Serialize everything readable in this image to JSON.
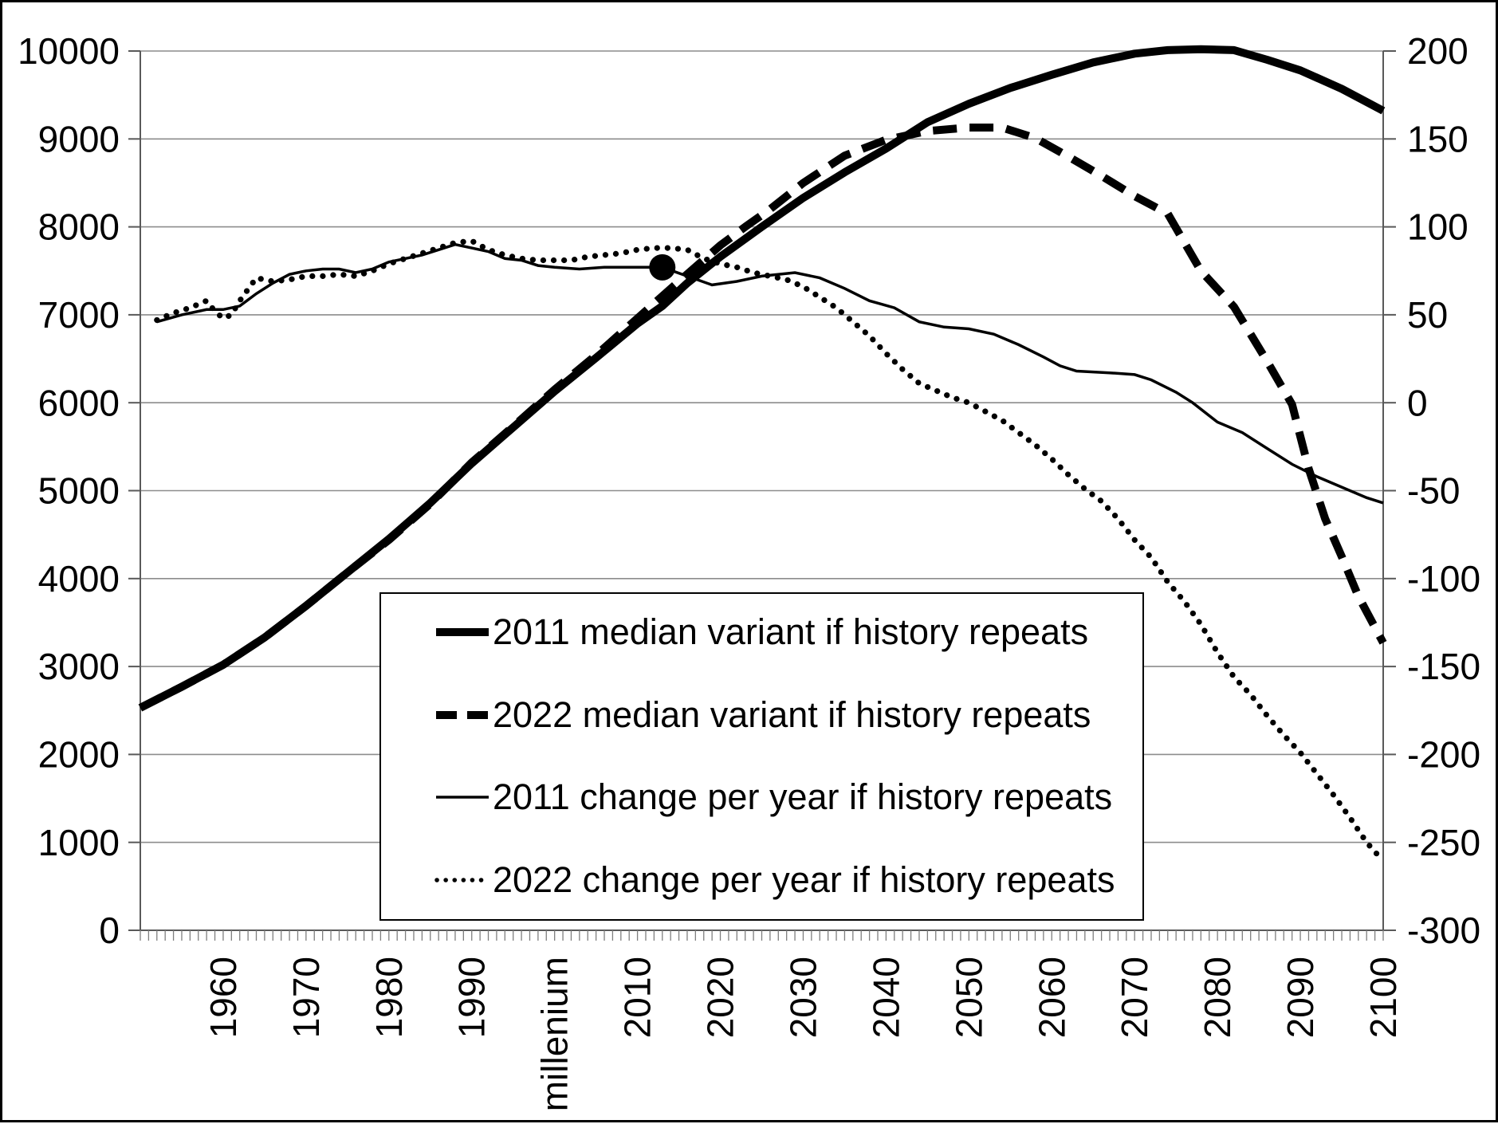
{
  "chart_data": {
    "type": "line",
    "title": "",
    "x_axis": {
      "range": [
        1950,
        2100
      ],
      "minor_tick_step_years": 1,
      "tick_labels": [
        {
          "year": 1960,
          "label": "1960"
        },
        {
          "year": 1970,
          "label": "1970"
        },
        {
          "year": 1980,
          "label": "1980"
        },
        {
          "year": 1990,
          "label": "1990"
        },
        {
          "year": 2000,
          "label": "millenium"
        },
        {
          "year": 2010,
          "label": "2010"
        },
        {
          "year": 2020,
          "label": "2020"
        },
        {
          "year": 2030,
          "label": "2030"
        },
        {
          "year": 2040,
          "label": "2040"
        },
        {
          "year": 2050,
          "label": "2050"
        },
        {
          "year": 2060,
          "label": "2060"
        },
        {
          "year": 2070,
          "label": "2070"
        },
        {
          "year": 2080,
          "label": "2080"
        },
        {
          "year": 2090,
          "label": "2090"
        },
        {
          "year": 2100,
          "label": "2100"
        }
      ]
    },
    "y_left": {
      "range": [
        0,
        10000
      ],
      "ticks": [
        0,
        1000,
        2000,
        3000,
        4000,
        5000,
        6000,
        7000,
        8000,
        9000,
        10000
      ]
    },
    "y_right": {
      "range": [
        -300,
        200
      ],
      "ticks": [
        -300,
        -250,
        -200,
        -150,
        -100,
        -50,
        0,
        50,
        100,
        150,
        200
      ]
    },
    "grid": "horizontal-only",
    "legend_position": "inside-bottom-center",
    "marker_dot": {
      "year": 2013,
      "value": 77,
      "axis": "right"
    },
    "series": [
      {
        "name": "2011 median variant if history repeats",
        "axis": "left",
        "style": "thick-solid",
        "points": [
          [
            1950,
            2530
          ],
          [
            1955,
            2770
          ],
          [
            1960,
            3020
          ],
          [
            1965,
            3330
          ],
          [
            1970,
            3690
          ],
          [
            1975,
            4070
          ],
          [
            1980,
            4450
          ],
          [
            1985,
            4860
          ],
          [
            1990,
            5310
          ],
          [
            1995,
            5720
          ],
          [
            2000,
            6130
          ],
          [
            2005,
            6510
          ],
          [
            2010,
            6900
          ],
          [
            2013,
            7100
          ],
          [
            2016,
            7360
          ],
          [
            2020,
            7660
          ],
          [
            2025,
            8000
          ],
          [
            2030,
            8330
          ],
          [
            2035,
            8620
          ],
          [
            2040,
            8890
          ],
          [
            2045,
            9190
          ],
          [
            2050,
            9400
          ],
          [
            2055,
            9580
          ],
          [
            2060,
            9730
          ],
          [
            2065,
            9870
          ],
          [
            2070,
            9970
          ],
          [
            2074,
            10010
          ],
          [
            2078,
            10020
          ],
          [
            2082,
            10010
          ],
          [
            2086,
            9900
          ],
          [
            2090,
            9780
          ],
          [
            2095,
            9570
          ],
          [
            2100,
            9320
          ]
        ]
      },
      {
        "name": "2022 median variant if history repeats",
        "axis": "left",
        "style": "thick-dashed",
        "points": [
          [
            1950,
            2530
          ],
          [
            1955,
            2770
          ],
          [
            1960,
            3020
          ],
          [
            1965,
            3330
          ],
          [
            1970,
            3690
          ],
          [
            1975,
            4070
          ],
          [
            1980,
            4440
          ],
          [
            1985,
            4850
          ],
          [
            1990,
            5320
          ],
          [
            1995,
            5730
          ],
          [
            2000,
            6150
          ],
          [
            2005,
            6540
          ],
          [
            2010,
            6960
          ],
          [
            2015,
            7380
          ],
          [
            2020,
            7790
          ],
          [
            2023,
            8000
          ],
          [
            2026,
            8200
          ],
          [
            2030,
            8500
          ],
          [
            2035,
            8810
          ],
          [
            2040,
            8990
          ],
          [
            2045,
            9090
          ],
          [
            2050,
            9130
          ],
          [
            2054,
            9130
          ],
          [
            2058,
            9010
          ],
          [
            2062,
            8800
          ],
          [
            2066,
            8580
          ],
          [
            2070,
            8350
          ],
          [
            2074,
            8150
          ],
          [
            2078,
            7500
          ],
          [
            2082,
            7090
          ],
          [
            2086,
            6470
          ],
          [
            2089,
            5980
          ],
          [
            2091,
            5250
          ],
          [
            2093,
            4680
          ],
          [
            2095,
            4250
          ],
          [
            2097,
            3800
          ],
          [
            2100,
            3270
          ]
        ]
      },
      {
        "name": "2011 change per year if history repeats",
        "axis": "right",
        "style": "thin-solid",
        "points": [
          [
            1952,
            46
          ],
          [
            1955,
            50
          ],
          [
            1958,
            53
          ],
          [
            1960,
            53
          ],
          [
            1962,
            55
          ],
          [
            1964,
            62
          ],
          [
            1966,
            68
          ],
          [
            1968,
            73
          ],
          [
            1970,
            75
          ],
          [
            1972,
            76
          ],
          [
            1974,
            76
          ],
          [
            1976,
            74
          ],
          [
            1978,
            76
          ],
          [
            1980,
            80
          ],
          [
            1982,
            82
          ],
          [
            1984,
            84
          ],
          [
            1986,
            87
          ],
          [
            1988,
            90
          ],
          [
            1990,
            88
          ],
          [
            1992,
            86
          ],
          [
            1994,
            82
          ],
          [
            1996,
            81
          ],
          [
            1998,
            78
          ],
          [
            2000,
            77
          ],
          [
            2003,
            76
          ],
          [
            2006,
            77
          ],
          [
            2010,
            77
          ],
          [
            2013,
            77
          ],
          [
            2016,
            72
          ],
          [
            2019,
            67
          ],
          [
            2022,
            69
          ],
          [
            2025,
            72
          ],
          [
            2029,
            74
          ],
          [
            2032,
            71
          ],
          [
            2035,
            65
          ],
          [
            2038,
            58
          ],
          [
            2041,
            54
          ],
          [
            2044,
            46
          ],
          [
            2047,
            43
          ],
          [
            2050,
            42
          ],
          [
            2053,
            39
          ],
          [
            2056,
            33
          ],
          [
            2059,
            26
          ],
          [
            2061,
            21
          ],
          [
            2063,
            18
          ],
          [
            2067,
            17
          ],
          [
            2070,
            16
          ],
          [
            2072,
            13
          ],
          [
            2075,
            6
          ],
          [
            2077,
            0
          ],
          [
            2080,
            -11
          ],
          [
            2083,
            -17
          ],
          [
            2086,
            -26
          ],
          [
            2089,
            -35
          ],
          [
            2092,
            -42
          ],
          [
            2095,
            -48
          ],
          [
            2098,
            -54
          ],
          [
            2100,
            -57
          ]
        ]
      },
      {
        "name": "2022 change per year if history repeats",
        "axis": "right",
        "style": "dotted",
        "points": [
          [
            1952,
            47
          ],
          [
            1954,
            51
          ],
          [
            1956,
            54
          ],
          [
            1958,
            58
          ],
          [
            1959,
            52
          ],
          [
            1960,
            48
          ],
          [
            1961,
            50
          ],
          [
            1962,
            58
          ],
          [
            1964,
            71
          ],
          [
            1966,
            69
          ],
          [
            1968,
            70
          ],
          [
            1970,
            72
          ],
          [
            1972,
            72
          ],
          [
            1974,
            73
          ],
          [
            1976,
            72
          ],
          [
            1978,
            75
          ],
          [
            1980,
            79
          ],
          [
            1982,
            82
          ],
          [
            1984,
            85
          ],
          [
            1986,
            88
          ],
          [
            1988,
            91
          ],
          [
            1990,
            92
          ],
          [
            1992,
            87
          ],
          [
            1994,
            84
          ],
          [
            1996,
            82
          ],
          [
            1998,
            81
          ],
          [
            2000,
            81
          ],
          [
            2002,
            81
          ],
          [
            2004,
            83
          ],
          [
            2006,
            84
          ],
          [
            2008,
            85
          ],
          [
            2010,
            87
          ],
          [
            2012,
            88
          ],
          [
            2014,
            88
          ],
          [
            2016,
            87
          ],
          [
            2018,
            82
          ],
          [
            2020,
            79
          ],
          [
            2022,
            77
          ],
          [
            2024,
            74
          ],
          [
            2026,
            72
          ],
          [
            2028,
            70
          ],
          [
            2030,
            66
          ],
          [
            2032,
            60
          ],
          [
            2034,
            54
          ],
          [
            2036,
            46
          ],
          [
            2038,
            38
          ],
          [
            2040,
            28
          ],
          [
            2042,
            19
          ],
          [
            2044,
            11
          ],
          [
            2046,
            7
          ],
          [
            2048,
            3
          ],
          [
            2050,
            0
          ],
          [
            2052,
            -5
          ],
          [
            2054,
            -10
          ],
          [
            2056,
            -17
          ],
          [
            2058,
            -24
          ],
          [
            2060,
            -32
          ],
          [
            2062,
            -41
          ],
          [
            2064,
            -49
          ],
          [
            2066,
            -56
          ],
          [
            2068,
            -66
          ],
          [
            2070,
            -78
          ],
          [
            2072,
            -88
          ],
          [
            2074,
            -102
          ],
          [
            2076,
            -113
          ],
          [
            2078,
            -126
          ],
          [
            2080,
            -142
          ],
          [
            2082,
            -156
          ],
          [
            2084,
            -166
          ],
          [
            2086,
            -178
          ],
          [
            2088,
            -189
          ],
          [
            2090,
            -199
          ],
          [
            2092,
            -211
          ],
          [
            2094,
            -223
          ],
          [
            2096,
            -236
          ],
          [
            2098,
            -250
          ],
          [
            2099.5,
            -258
          ]
        ]
      }
    ]
  },
  "legend": {
    "items": [
      {
        "sample": "thick-solid-line-sample"
      },
      {
        "sample": "thick-dashed-line-sample"
      },
      {
        "sample": "thin-solid-line-sample"
      },
      {
        "sample": "dotted-line-sample"
      }
    ]
  }
}
